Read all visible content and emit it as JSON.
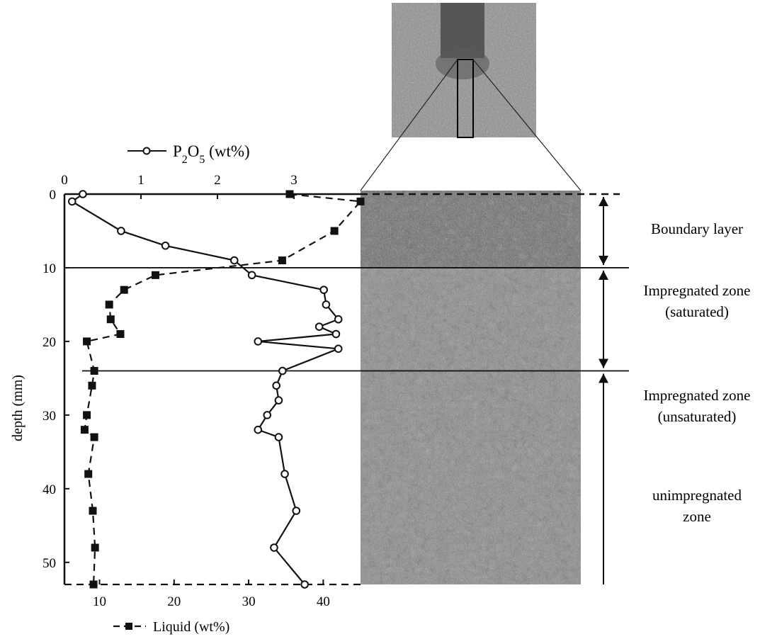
{
  "chart_data": {
    "type": "line",
    "y_axis": {
      "label": "depth (mm)",
      "ticks": [
        "0",
        "10",
        "20",
        "30",
        "40",
        "50"
      ],
      "range": [
        0,
        53
      ]
    },
    "top_axis": {
      "ticks": [
        "0",
        "1",
        "2",
        "3"
      ],
      "range": [
        0,
        3.87
      ]
    },
    "bottom_axis": {
      "ticks": [
        "10",
        "20",
        "30",
        "40"
      ],
      "range": [
        5.3,
        45
      ]
    },
    "legend": {
      "p2o5_prefix": "P",
      "p2o5_sub1": "2",
      "p2o5_mid": "O",
      "p2o5_sub2": "5",
      "p2o5_unit": " (wt%)",
      "liquid": "Liquid  (wt%)"
    },
    "series": [
      {
        "id": "p2o5",
        "axis": "top",
        "style": "solid-open-circle",
        "points": [
          [
            0.24,
            0
          ],
          [
            0.1,
            1
          ],
          [
            0.74,
            5
          ],
          [
            1.32,
            7
          ],
          [
            2.22,
            9
          ],
          [
            2.45,
            11
          ],
          [
            3.39,
            13
          ],
          [
            3.42,
            15
          ],
          [
            3.58,
            17
          ],
          [
            3.33,
            18
          ],
          [
            3.55,
            19
          ],
          [
            2.53,
            20
          ],
          [
            3.58,
            21
          ],
          [
            2.85,
            24
          ],
          [
            2.77,
            26
          ],
          [
            2.8,
            28
          ],
          [
            2.65,
            30
          ],
          [
            2.53,
            32
          ],
          [
            2.8,
            33
          ],
          [
            2.88,
            38
          ],
          [
            3.03,
            43
          ],
          [
            2.74,
            48
          ],
          [
            3.14,
            53
          ]
        ]
      },
      {
        "id": "liquid",
        "axis": "bottom",
        "style": "dashed-filled-square",
        "points": [
          [
            35.5,
            0
          ],
          [
            45,
            1
          ],
          [
            41.5,
            5
          ],
          [
            34.5,
            9
          ],
          [
            17.5,
            11
          ],
          [
            13.3,
            13
          ],
          [
            11.3,
            15
          ],
          [
            11.5,
            17
          ],
          [
            12.8,
            19
          ],
          [
            8.3,
            20
          ],
          [
            9.3,
            24
          ],
          [
            9.0,
            26
          ],
          [
            8.3,
            30
          ],
          [
            8.0,
            32
          ],
          [
            9.3,
            33
          ],
          [
            8.5,
            38
          ],
          [
            9.1,
            43
          ],
          [
            9.4,
            48
          ],
          [
            9.2,
            53
          ]
        ]
      }
    ],
    "boundaries_mm": [
      10,
      24
    ],
    "zones": [
      {
        "lines": [
          "Boundary layer"
        ],
        "from": 0,
        "to": 10
      },
      {
        "lines": [
          "Impregnated zone",
          "(saturated)"
        ],
        "from": 10,
        "to": 24
      },
      {
        "lines": [
          "Impregnated zone",
          "(unsaturated)"
        ],
        "from": 24,
        "to": 53
      },
      {
        "lines": [
          "unimpregnated",
          "zone"
        ]
      }
    ]
  },
  "colors": {
    "ink": "#111111",
    "specimen": "#8a8a8a",
    "specimen_dark": "#555555"
  }
}
